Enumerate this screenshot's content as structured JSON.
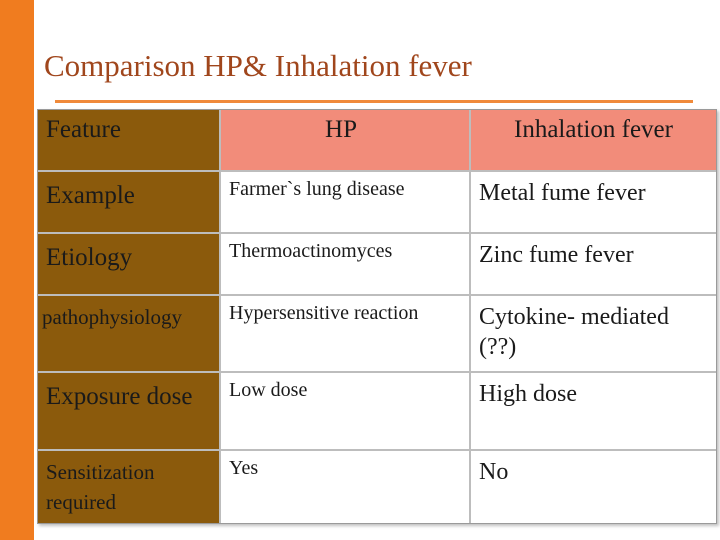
{
  "title": "Comparison HP& Inhalation fever",
  "table": {
    "headers": [
      "Feature",
      "HP",
      "Inhalation fever"
    ],
    "rows": [
      {
        "feature": "Example",
        "hp": "Farmer`s lung disease",
        "inhalation": "Metal fume fever"
      },
      {
        "feature": "Etiology",
        "hp": "Thermoactinomyces",
        "inhalation": "Zinc fume fever"
      },
      {
        "feature": "pathophysiology",
        "hp": "Hypersensitive reaction",
        "inhalation": "Cytokine- mediated (??)"
      },
      {
        "feature": "Exposure dose",
        "hp": "Low dose",
        "inhalation": "High dose"
      },
      {
        "feature": "Sensitization required",
        "hp": "Yes",
        "inhalation": "No"
      }
    ]
  },
  "colors": {
    "accent_bar": "#f07c1f",
    "title": "#a0461c",
    "feature_column": "#8b5a0c",
    "header_highlight": "#f28c7a"
  }
}
